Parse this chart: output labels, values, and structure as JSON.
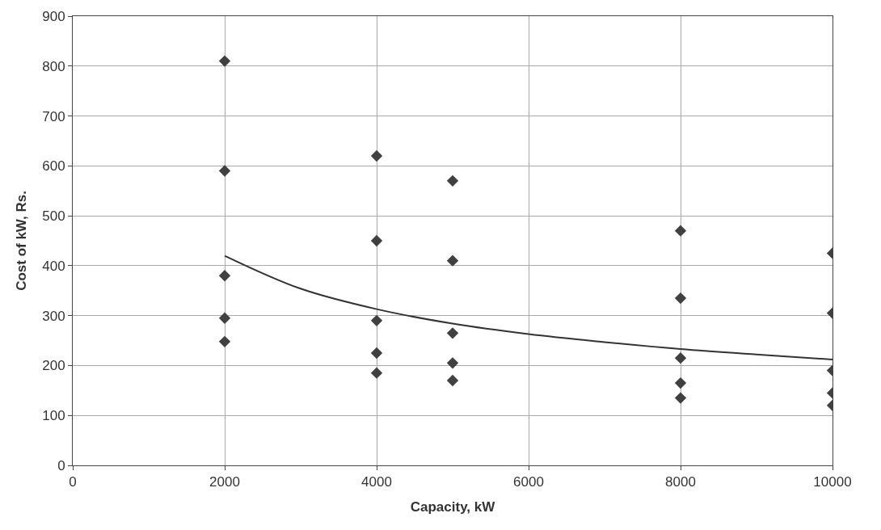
{
  "chart_data": {
    "type": "scatter",
    "xlabel": "Capacity, kW",
    "ylabel": "Cost of kW, Rs.",
    "xlim": [
      0,
      10000
    ],
    "xticks": [
      0,
      2000,
      4000,
      6000,
      8000,
      10000
    ],
    "ylim": [
      0,
      900
    ],
    "yticks": [
      0,
      100,
      200,
      300,
      400,
      500,
      600,
      700,
      800,
      900
    ],
    "grid": true,
    "series": [
      {
        "color": "#404040",
        "marker": "diamond",
        "x": [
          2000,
          2000,
          2000,
          2000,
          2000,
          4000,
          4000,
          4000,
          4000,
          4000,
          5000,
          5000,
          5000,
          5000,
          5000,
          8000,
          8000,
          8000,
          8000,
          8000,
          10000,
          10000,
          10000,
          10000,
          10000
        ],
        "values": [
          810,
          590,
          380,
          295,
          248,
          620,
          450,
          290,
          225,
          185,
          570,
          410,
          265,
          205,
          170,
          470,
          335,
          215,
          165,
          135,
          425,
          305,
          190,
          145,
          120
        ]
      },
      {
        "type": "line",
        "color": "#333333",
        "marker": "none",
        "line_style": "solid",
        "x": [
          2000,
          3000,
          4000,
          5000,
          6000,
          7000,
          8000,
          9000,
          10000
        ],
        "values": [
          420,
          354,
          313,
          284,
          263,
          247,
          233,
          222,
          212
        ]
      }
    ]
  }
}
